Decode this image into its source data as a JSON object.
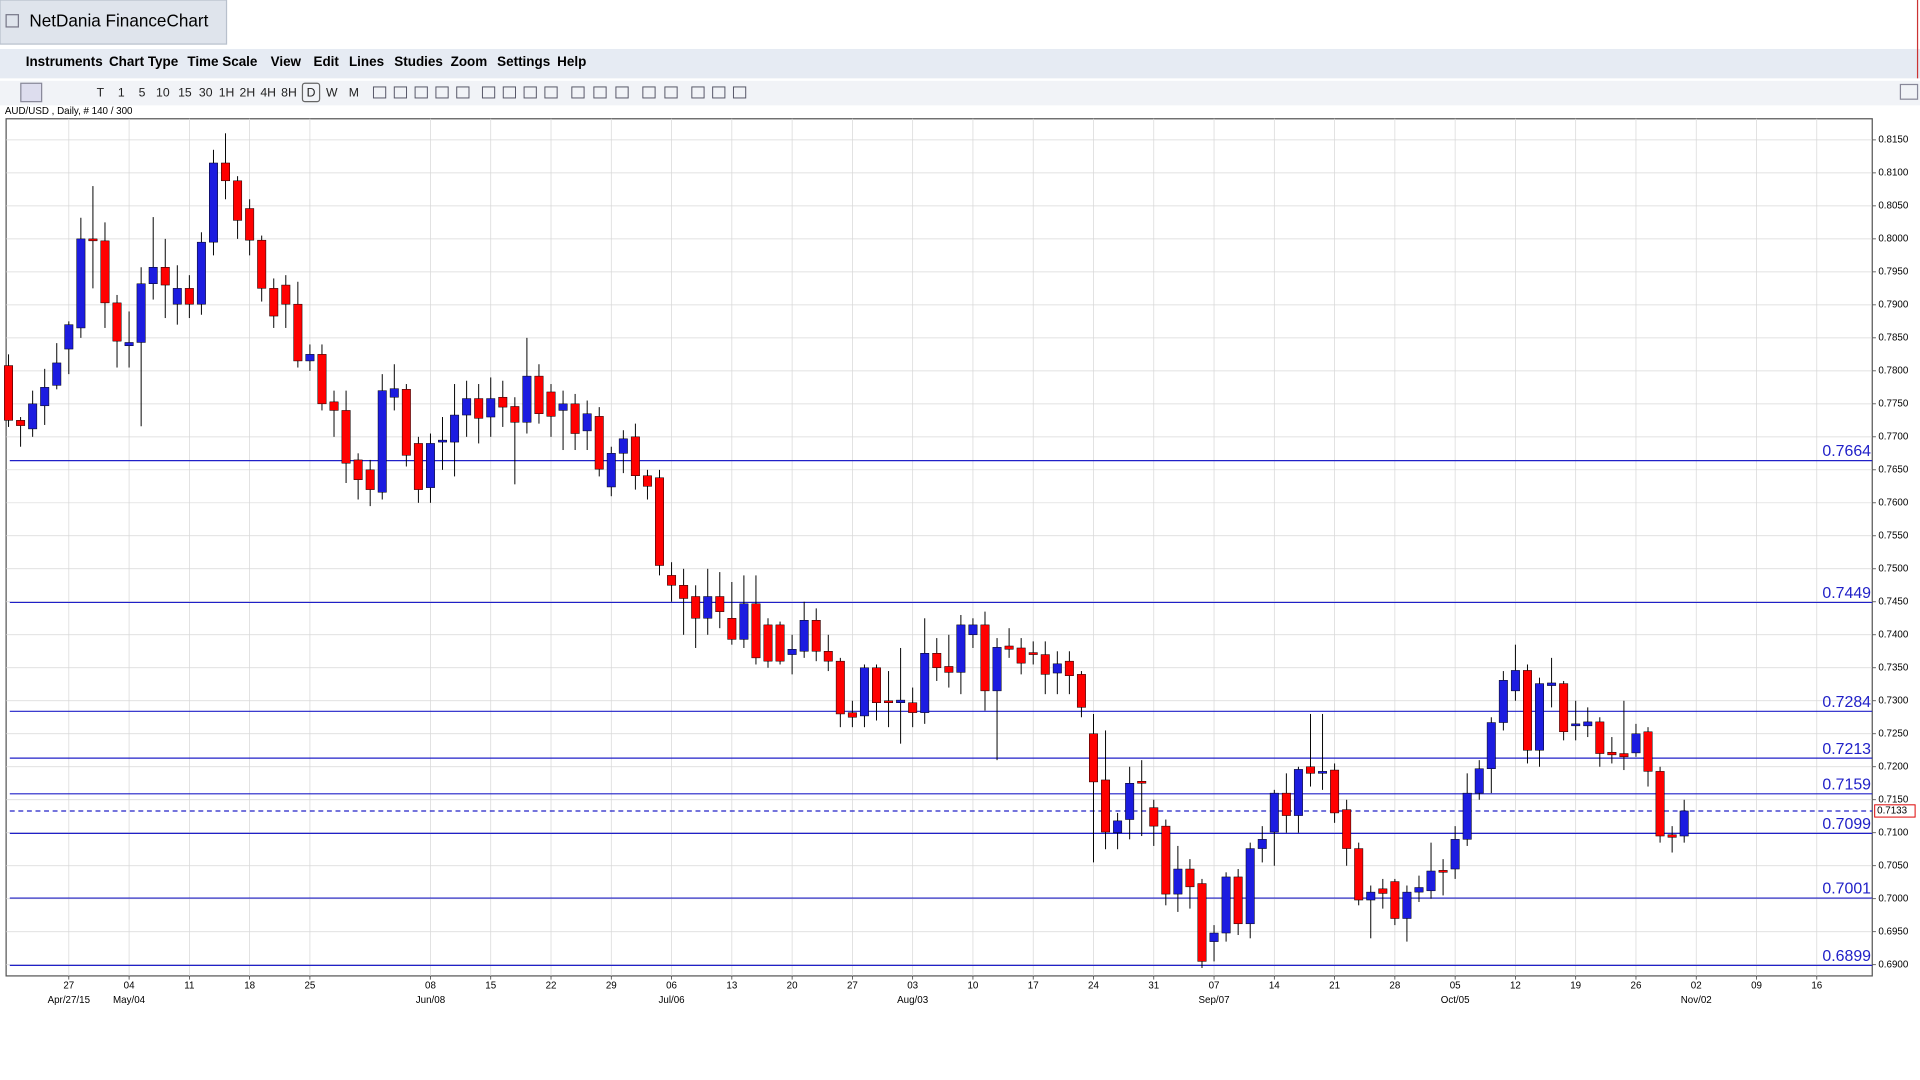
{
  "window": {
    "title": "NetDania FinanceChart",
    "menu": [
      "Instruments",
      "Chart Type",
      "Time Scale",
      "View",
      "Edit",
      "Lines",
      "Studies",
      "Zoom",
      "Settings",
      "Help"
    ],
    "toolbar": [
      "T",
      "1",
      "5",
      "10",
      "15",
      "30",
      "1H",
      "2H",
      "4H",
      "8H",
      "D",
      "W",
      "M"
    ]
  },
  "chart_data": {
    "type": "candlestick",
    "title": "AUD/USD , Daily, # 140 / 300",
    "up_color": "#1c1ce0",
    "down_color": "#ff0000",
    "line_color": "#2020c8",
    "grid": true,
    "open": [
      0.7808,
      0.7725,
      0.7712,
      0.7747,
      0.7778,
      0.7833,
      0.7865,
      0.8,
      0.7997,
      0.7903,
      0.7838,
      0.7843,
      0.7932,
      0.7957,
      0.7901,
      0.7925,
      0.7901,
      0.7995,
      0.8115,
      0.8088,
      0.8046,
      0.7998,
      0.7925,
      0.793,
      0.7901,
      0.7815,
      0.7825,
      0.7753,
      0.774,
      0.7665,
      0.765,
      0.7616,
      0.776,
      0.7772,
      0.769,
      0.7623,
      0.7692,
      0.7692,
      0.7733,
      0.7758,
      0.773,
      0.776,
      0.7746,
      0.7722,
      0.7792,
      0.7768,
      0.774,
      0.775,
      0.7709,
      0.7731,
      0.7624,
      0.7675,
      0.77,
      0.7641,
      0.7638,
      0.749,
      0.7475,
      0.7458,
      0.7425,
      0.7458,
      0.7425,
      0.7393,
      0.7447,
      0.7415,
      0.7415,
      0.737,
      0.7375,
      0.7422,
      0.7375,
      0.736,
      0.7282,
      0.7277,
      0.735,
      0.73,
      0.7297,
      0.7297,
      0.7282,
      0.7372,
      0.7352,
      0.7343,
      0.74,
      0.7415,
      0.7315,
      0.7383,
      0.738,
      0.7373,
      0.737,
      0.7342,
      0.736,
      0.734,
      0.725,
      0.718,
      0.71,
      0.712,
      0.7178,
      0.7138,
      0.711,
      0.7007,
      0.7045,
      0.7023,
      0.6935,
      0.6948,
      0.7033,
      0.6962,
      0.7076,
      0.7101,
      0.716,
      0.7126,
      0.72,
      0.719,
      0.7195,
      0.7135,
      0.7076,
      0.6998,
      0.7015,
      0.7026,
      0.697,
      0.701,
      0.7012,
      0.7043,
      0.7045,
      0.709,
      0.716,
      0.7197,
      0.7267,
      0.7315,
      0.7346,
      0.7225,
      0.7323,
      0.7326,
      0.7262,
      0.7262,
      0.7268,
      0.7222,
      0.722,
      0.7221,
      0.7253,
      0.7193,
      0.7097,
      0.7095
    ],
    "high": [
      0.7825,
      0.773,
      0.777,
      0.7803,
      0.7842,
      0.7875,
      0.8032,
      0.808,
      0.8025,
      0.7915,
      0.789,
      0.7957,
      0.8033,
      0.8,
      0.796,
      0.7945,
      0.801,
      0.8135,
      0.816,
      0.8095,
      0.806,
      0.8005,
      0.794,
      0.7945,
      0.7935,
      0.784,
      0.784,
      0.777,
      0.777,
      0.7675,
      0.7665,
      0.7795,
      0.781,
      0.778,
      0.77,
      0.7705,
      0.773,
      0.778,
      0.7785,
      0.778,
      0.779,
      0.7785,
      0.776,
      0.785,
      0.781,
      0.778,
      0.777,
      0.7765,
      0.7755,
      0.7745,
      0.7685,
      0.771,
      0.772,
      0.765,
      0.765,
      0.751,
      0.75,
      0.7475,
      0.75,
      0.7495,
      0.748,
      0.749,
      0.749,
      0.7425,
      0.742,
      0.74,
      0.745,
      0.744,
      0.74,
      0.7365,
      0.73,
      0.7355,
      0.7355,
      0.7345,
      0.738,
      0.732,
      0.7425,
      0.7395,
      0.74,
      0.743,
      0.7425,
      0.7435,
      0.7395,
      0.741,
      0.7395,
      0.739,
      0.739,
      0.7375,
      0.7375,
      0.7345,
      0.728,
      0.7255,
      0.713,
      0.72,
      0.721,
      0.715,
      0.712,
      0.708,
      0.706,
      0.703,
      0.696,
      0.704,
      0.7045,
      0.7085,
      0.711,
      0.7165,
      0.719,
      0.72,
      0.728,
      0.728,
      0.7205,
      0.715,
      0.7085,
      0.702,
      0.703,
      0.703,
      0.702,
      0.7035,
      0.7085,
      0.706,
      0.711,
      0.719,
      0.721,
      0.7275,
      0.7345,
      0.7385,
      0.7355,
      0.7335,
      0.7365,
      0.733,
      0.73,
      0.729,
      0.7275,
      0.7245,
      0.73,
      0.7265,
      0.726,
      0.72,
      0.711,
      0.715
    ],
    "low": [
      0.7715,
      0.7685,
      0.77,
      0.7718,
      0.7772,
      0.7795,
      0.785,
      0.7925,
      0.7865,
      0.7805,
      0.7805,
      0.7716,
      0.7908,
      0.788,
      0.787,
      0.788,
      0.7885,
      0.7975,
      0.806,
      0.8,
      0.7975,
      0.7905,
      0.7865,
      0.7865,
      0.7805,
      0.78,
      0.774,
      0.77,
      0.763,
      0.7605,
      0.7595,
      0.7605,
      0.774,
      0.7655,
      0.76,
      0.76,
      0.765,
      0.764,
      0.77,
      0.769,
      0.77,
      0.7715,
      0.7628,
      0.7705,
      0.772,
      0.77,
      0.768,
      0.768,
      0.768,
      0.764,
      0.761,
      0.7645,
      0.762,
      0.7605,
      0.749,
      0.745,
      0.74,
      0.738,
      0.74,
      0.741,
      0.7385,
      0.738,
      0.7355,
      0.735,
      0.7355,
      0.734,
      0.7365,
      0.736,
      0.7345,
      0.726,
      0.726,
      0.726,
      0.727,
      0.726,
      0.7235,
      0.726,
      0.7265,
      0.733,
      0.732,
      0.731,
      0.738,
      0.7285,
      0.721,
      0.7365,
      0.734,
      0.7355,
      0.731,
      0.731,
      0.731,
      0.7275,
      0.7055,
      0.7075,
      0.7075,
      0.709,
      0.7095,
      0.708,
      0.699,
      0.698,
      0.6985,
      0.6895,
      0.6905,
      0.6935,
      0.6945,
      0.694,
      0.7055,
      0.705,
      0.71,
      0.71,
      0.717,
      0.7165,
      0.7115,
      0.705,
      0.699,
      0.694,
      0.6985,
      0.696,
      0.6935,
      0.6995,
      0.7,
      0.7005,
      0.703,
      0.708,
      0.715,
      0.716,
      0.7255,
      0.73,
      0.7205,
      0.72,
      0.729,
      0.724,
      0.724,
      0.7245,
      0.72,
      0.7205,
      0.7195,
      0.7215,
      0.717,
      0.7085,
      0.707,
      0.7085
    ],
    "close": [
      0.7725,
      0.7717,
      0.775,
      0.7775,
      0.7812,
      0.787,
      0.8,
      0.7997,
      0.7903,
      0.7845,
      0.7843,
      0.7932,
      0.7957,
      0.793,
      0.7925,
      0.7901,
      0.7995,
      0.8115,
      0.8088,
      0.8028,
      0.7998,
      0.7925,
      0.7883,
      0.7901,
      0.7815,
      0.7825,
      0.775,
      0.774,
      0.766,
      0.7635,
      0.762,
      0.777,
      0.7773,
      0.7672,
      0.762,
      0.769,
      0.7695,
      0.7733,
      0.7758,
      0.7728,
      0.7758,
      0.7745,
      0.7722,
      0.7792,
      0.7735,
      0.7731,
      0.775,
      0.7705,
      0.7735,
      0.7651,
      0.7675,
      0.7697,
      0.7641,
      0.7625,
      0.7505,
      0.7475,
      0.7455,
      0.7425,
      0.7458,
      0.7435,
      0.7393,
      0.7447,
      0.7365,
      0.736,
      0.736,
      0.7378,
      0.7422,
      0.7375,
      0.736,
      0.728,
      0.7275,
      0.735,
      0.7297,
      0.7297,
      0.7301,
      0.7282,
      0.7372,
      0.735,
      0.7343,
      0.7415,
      0.7415,
      0.7315,
      0.7381,
      0.7378,
      0.7357,
      0.737,
      0.734,
      0.7356,
      0.7338,
      0.729,
      0.7177,
      0.7101,
      0.7118,
      0.7175,
      0.7175,
      0.711,
      0.7007,
      0.7045,
      0.7018,
      0.6905,
      0.6948,
      0.7033,
      0.6962,
      0.7076,
      0.709,
      0.716,
      0.7126,
      0.7196,
      0.719,
      0.7193,
      0.713,
      0.7076,
      0.6998,
      0.701,
      0.7008,
      0.697,
      0.701,
      0.7017,
      0.7042,
      0.704,
      0.709,
      0.716,
      0.7197,
      0.7267,
      0.7331,
      0.7346,
      0.7225,
      0.7326,
      0.7327,
      0.7253,
      0.7265,
      0.7268,
      0.722,
      0.7218,
      0.7215,
      0.725,
      0.7193,
      0.7095,
      0.7093,
      0.7133
    ],
    "xlim": [
      -0.2,
      154.6
    ],
    "ylim": [
      0.6883,
      0.8182
    ],
    "xticks": [
      {
        "value": 5,
        "label": "27"
      },
      {
        "value": 10,
        "label": "04"
      },
      {
        "value": 15,
        "label": "11"
      },
      {
        "value": 20,
        "label": "18"
      },
      {
        "value": 25,
        "label": "25"
      },
      {
        "value": 35,
        "label": "08"
      },
      {
        "value": 40,
        "label": "15"
      },
      {
        "value": 45,
        "label": "22"
      },
      {
        "value": 50,
        "label": "29"
      },
      {
        "value": 55,
        "label": "06"
      },
      {
        "value": 60,
        "label": "13"
      },
      {
        "value": 65,
        "label": "20"
      },
      {
        "value": 70,
        "label": "27"
      },
      {
        "value": 75,
        "label": "03"
      },
      {
        "value": 80,
        "label": "10"
      },
      {
        "value": 85,
        "label": "17"
      },
      {
        "value": 90,
        "label": "24"
      },
      {
        "value": 95,
        "label": "31"
      },
      {
        "value": 100,
        "label": "07"
      },
      {
        "value": 105,
        "label": "14"
      },
      {
        "value": 110,
        "label": "21"
      },
      {
        "value": 115,
        "label": "28"
      },
      {
        "value": 120,
        "label": "05"
      },
      {
        "value": 125,
        "label": "12"
      },
      {
        "value": 130,
        "label": "19"
      },
      {
        "value": 135,
        "label": "26"
      },
      {
        "value": 140,
        "label": "02"
      },
      {
        "value": 145,
        "label": "09"
      },
      {
        "value": 150,
        "label": "16"
      }
    ],
    "month_ticks": [
      {
        "value": 5,
        "label": "Apr/27/15"
      },
      {
        "value": 10,
        "label": "May/04"
      },
      {
        "value": 35,
        "label": "Jun/08"
      },
      {
        "value": 55,
        "label": "Jul/06"
      },
      {
        "value": 75,
        "label": "Aug/03"
      },
      {
        "value": 100,
        "label": "Sep/07"
      },
      {
        "value": 120,
        "label": "Oct/05"
      },
      {
        "value": 140,
        "label": "Nov/02"
      }
    ],
    "yticks": [
      {
        "value": 0.815,
        "label": "0.8150"
      },
      {
        "value": 0.81,
        "label": "0.8100"
      },
      {
        "value": 0.805,
        "label": "0.8050"
      },
      {
        "value": 0.8,
        "label": "0.8000"
      },
      {
        "value": 0.795,
        "label": "0.7950"
      },
      {
        "value": 0.79,
        "label": "0.7900"
      },
      {
        "value": 0.785,
        "label": "0.7850"
      },
      {
        "value": 0.78,
        "label": "0.7800"
      },
      {
        "value": 0.775,
        "label": "0.7750"
      },
      {
        "value": 0.77,
        "label": "0.7700"
      },
      {
        "value": 0.765,
        "label": "0.7650"
      },
      {
        "value": 0.76,
        "label": "0.7600"
      },
      {
        "value": 0.755,
        "label": "0.7550"
      },
      {
        "value": 0.75,
        "label": "0.7500"
      },
      {
        "value": 0.745,
        "label": "0.7450"
      },
      {
        "value": 0.74,
        "label": "0.7400"
      },
      {
        "value": 0.735,
        "label": "0.7350"
      },
      {
        "value": 0.73,
        "label": "0.7300"
      },
      {
        "value": 0.725,
        "label": "0.7250"
      },
      {
        "value": 0.72,
        "label": "0.7200"
      },
      {
        "value": 0.715,
        "label": "0.7150"
      },
      {
        "value": 0.71,
        "label": "0.7100"
      },
      {
        "value": 0.705,
        "label": "0.7050"
      },
      {
        "value": 0.7,
        "label": "0.7000"
      },
      {
        "value": 0.695,
        "label": "0.6950"
      },
      {
        "value": 0.69,
        "label": "0.6900"
      }
    ],
    "hlines": [
      0.7664,
      0.7449,
      0.7284,
      0.7213,
      0.7159,
      0.7099,
      0.7001,
      0.6899
    ],
    "current_price": 0.7133
  }
}
